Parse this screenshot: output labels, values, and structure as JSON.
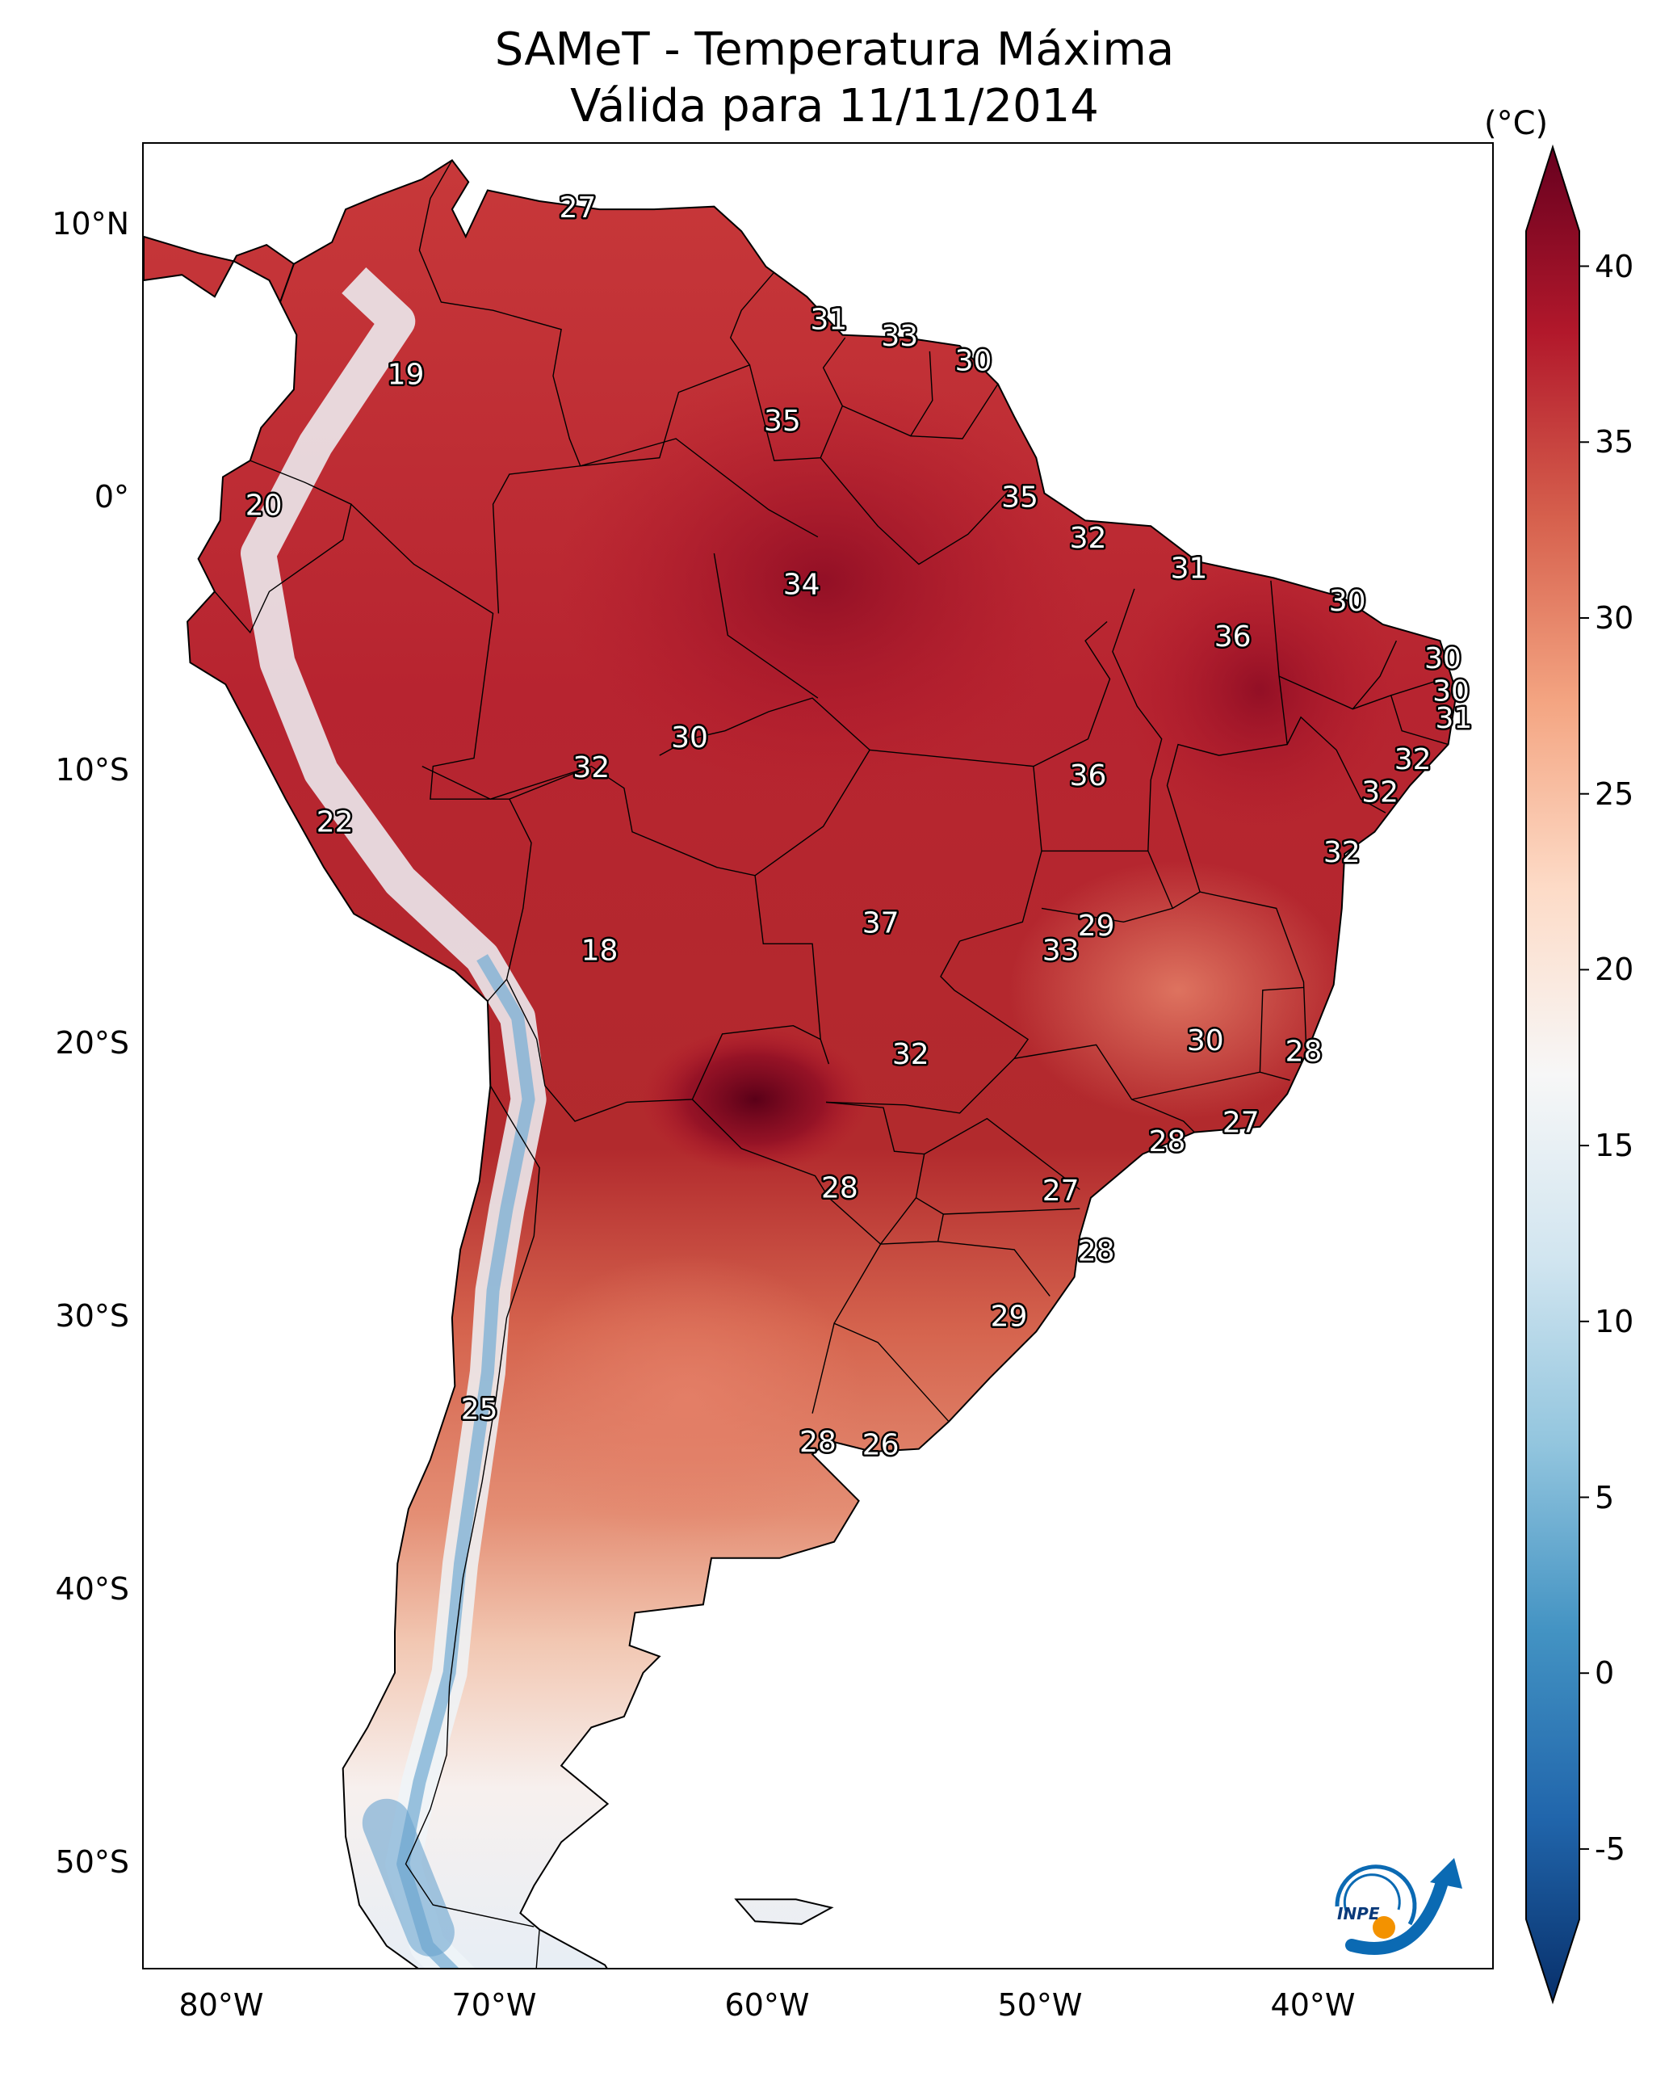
{
  "title": {
    "line1": "SAMeT - Temperatura Máxima",
    "line2": "Válida para 11/11/2014"
  },
  "colorbar": {
    "unit": "(°C)",
    "ticks": [
      "40",
      "35",
      "30",
      "25",
      "20",
      "15",
      "10",
      "5",
      "0",
      "-5"
    ],
    "range": [
      -7,
      41
    ],
    "colormap": "RdBu_r",
    "colors": [
      "#08306b",
      "#2166ac",
      "#4393c3",
      "#92c5de",
      "#d1e5f0",
      "#f7f7f7",
      "#fddbc7",
      "#f4a582",
      "#d6604d",
      "#b2182b",
      "#67001f"
    ]
  },
  "axes": {
    "lat_labels": [
      "10°N",
      "0°",
      "10°S",
      "20°S",
      "30°S",
      "40°S",
      "50°S"
    ],
    "lon_labels": [
      "80°W",
      "70°W",
      "60°W",
      "50°W",
      "40°W"
    ]
  },
  "logo": {
    "text": "INPE",
    "icon": "inpe-logo-icon"
  },
  "station_labels": [
    {
      "text": "27",
      "lon": -67.0,
      "lat": 10.6
    },
    {
      "text": "31",
      "lon": -57.8,
      "lat": 6.5
    },
    {
      "text": "33",
      "lon": -55.2,
      "lat": 5.9
    },
    {
      "text": "30",
      "lon": -52.5,
      "lat": 5.0
    },
    {
      "text": "19",
      "lon": -73.3,
      "lat": 4.5
    },
    {
      "text": "35",
      "lon": -59.5,
      "lat": 2.8
    },
    {
      "text": "35",
      "lon": -50.8,
      "lat": 0.0
    },
    {
      "text": "20",
      "lon": -78.5,
      "lat": -0.3
    },
    {
      "text": "32",
      "lon": -48.3,
      "lat": -1.5
    },
    {
      "text": "31",
      "lon": -44.6,
      "lat": -2.6
    },
    {
      "text": "34",
      "lon": -58.8,
      "lat": -3.2
    },
    {
      "text": "30",
      "lon": -38.8,
      "lat": -3.8
    },
    {
      "text": "36",
      "lon": -43.0,
      "lat": -5.1
    },
    {
      "text": "30",
      "lon": -35.3,
      "lat": -5.9
    },
    {
      "text": "30",
      "lon": -35.0,
      "lat": -7.1
    },
    {
      "text": "31",
      "lon": -34.9,
      "lat": -8.1
    },
    {
      "text": "30",
      "lon": -62.9,
      "lat": -8.8
    },
    {
      "text": "32",
      "lon": -36.4,
      "lat": -9.6
    },
    {
      "text": "32",
      "lon": -66.5,
      "lat": -9.9
    },
    {
      "text": "36",
      "lon": -48.3,
      "lat": -10.2
    },
    {
      "text": "32",
      "lon": -37.6,
      "lat": -10.8
    },
    {
      "text": "22",
      "lon": -75.9,
      "lat": -11.9
    },
    {
      "text": "32",
      "lon": -39.0,
      "lat": -13.0
    },
    {
      "text": "37",
      "lon": -55.9,
      "lat": -15.6
    },
    {
      "text": "29",
      "lon": -48.0,
      "lat": -15.7
    },
    {
      "text": "18",
      "lon": -66.2,
      "lat": -16.6
    },
    {
      "text": "33",
      "lon": -49.3,
      "lat": -16.6
    },
    {
      "text": "30",
      "lon": -44.0,
      "lat": -19.9
    },
    {
      "text": "28",
      "lon": -40.4,
      "lat": -20.3
    },
    {
      "text": "32",
      "lon": -54.8,
      "lat": -20.4
    },
    {
      "text": "27",
      "lon": -42.7,
      "lat": -22.9
    },
    {
      "text": "28",
      "lon": -45.4,
      "lat": -23.6
    },
    {
      "text": "28",
      "lon": -57.4,
      "lat": -25.3
    },
    {
      "text": "27",
      "lon": -49.3,
      "lat": -25.4
    },
    {
      "text": "28",
      "lon": -48.0,
      "lat": -27.6
    },
    {
      "text": "29",
      "lon": -51.2,
      "lat": -30.0
    },
    {
      "text": "25",
      "lon": -70.6,
      "lat": -33.4
    },
    {
      "text": "28",
      "lon": -58.2,
      "lat": -34.6
    },
    {
      "text": "26",
      "lon": -55.9,
      "lat": -34.7
    }
  ]
}
